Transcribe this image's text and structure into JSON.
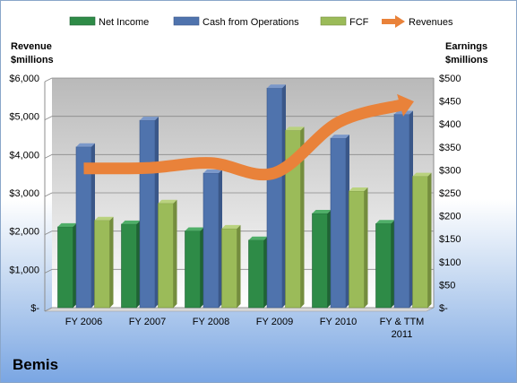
{
  "company": "Bemis",
  "colors": {
    "net_income": "#2e8b47",
    "cash_from_operations": "#4f73ad",
    "fcf": "#9bbb59",
    "revenues": "#e9823a"
  },
  "chart_data": {
    "type": "bar",
    "categories": [
      "FY 2006",
      "FY 2007",
      "FY 2008",
      "FY 2009",
      "FY 2010",
      "FY & TTM 2011"
    ],
    "category_lines": [
      [
        "FY 2006"
      ],
      [
        "FY 2007"
      ],
      [
        "FY 2008"
      ],
      [
        "FY 2009"
      ],
      [
        "FY 2010"
      ],
      [
        "FY & TTM",
        "2011"
      ]
    ],
    "left_axis": {
      "label": [
        "Revenue",
        "$millions"
      ],
      "ylim": [
        0,
        6000
      ],
      "ticks": [
        0,
        1000,
        2000,
        3000,
        4000,
        5000,
        6000
      ],
      "tick_labels": [
        "$-",
        "$1,000",
        "$2,000",
        "$3,000",
        "$4,000",
        "$5,000",
        "$6,000"
      ]
    },
    "right_axis": {
      "label": [
        "Earnings",
        "$millions"
      ],
      "ylim": [
        0,
        500
      ],
      "ticks": [
        0,
        50,
        100,
        150,
        200,
        250,
        300,
        350,
        400,
        450,
        500
      ],
      "tick_labels": [
        "$-",
        "$50",
        "$100",
        "$150",
        "$200",
        "$250",
        "$300",
        "$350",
        "$400",
        "$450",
        "$500"
      ]
    },
    "series": [
      {
        "name": "Net Income",
        "type": "bar",
        "axis": "right",
        "values": [
          176,
          182,
          167,
          147,
          205,
          183
        ]
      },
      {
        "name": "Cash from Operations",
        "type": "bar",
        "axis": "right",
        "values": [
          350,
          408,
          293,
          478,
          369,
          421
        ]
      },
      {
        "name": "FCF",
        "type": "bar",
        "axis": "right",
        "values": [
          190,
          227,
          172,
          386,
          254,
          286
        ]
      },
      {
        "name": "Revenues",
        "type": "line",
        "axis": "left",
        "values": [
          3640,
          3650,
          3780,
          3520,
          4840,
          5300
        ]
      }
    ],
    "legend_position": "top",
    "grid": true
  }
}
